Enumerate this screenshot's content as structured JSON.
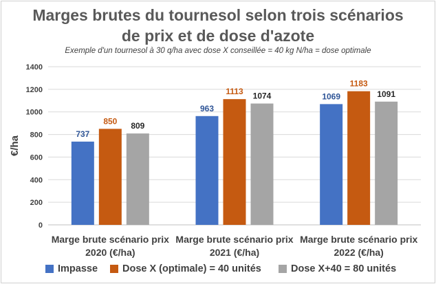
{
  "chart_data": {
    "type": "bar",
    "title_line1": "Marges brutes du tournesol selon trois scénarios",
    "title_line2": "de prix et de dose d'azote",
    "subtitle": "Exemple d'un tournesol à 30 q/ha avec dose X conseillée = 40 kg N/ha = dose optimale",
    "ylabel": "€/ha",
    "ylim": [
      0,
      1400
    ],
    "yticks": [
      "0",
      "200",
      "400",
      "600",
      "800",
      "1000",
      "1200",
      "1400"
    ],
    "grid": true,
    "legend_position": "bottom",
    "categories": [
      [
        "Marge brute scénario prix",
        "2020 (€/ha)"
      ],
      [
        "Marge brute scénario prix",
        "2021 (€/ha)"
      ],
      [
        "Marge brute scénario prix",
        "2022 (€/ha)"
      ]
    ],
    "series": [
      {
        "name": "Impasse",
        "color": "#4472C4",
        "labelColor": "#2F5597",
        "values": [
          737,
          963,
          1069
        ]
      },
      {
        "name": "Dose X (optimale) = 40 unités",
        "color": "#C55A11",
        "labelColor": "#C55A11",
        "values": [
          850,
          1113,
          1183
        ]
      },
      {
        "name": "Dose X+40 = 80 unités",
        "color": "#A5A5A5",
        "labelColor": "#262626",
        "values": [
          809,
          1074,
          1091
        ]
      }
    ]
  }
}
